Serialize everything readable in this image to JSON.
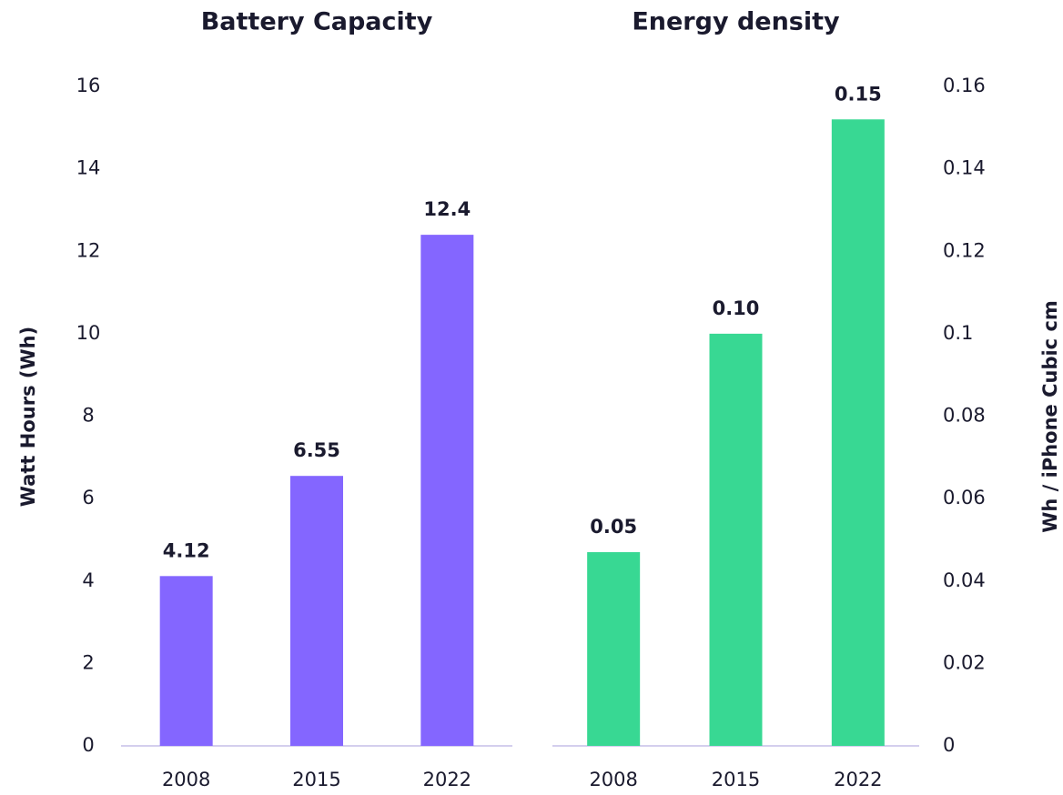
{
  "chart_data": [
    {
      "type": "bar",
      "title": "Battery Capacity",
      "y_label": "Watt Hours (Wh)",
      "categories": [
        "2008",
        "2015",
        "2022"
      ],
      "values": [
        4.12,
        6.55,
        12.4
      ],
      "color": "#8466ff",
      "ylim": [
        0,
        16
      ],
      "yticks": [
        0,
        2,
        4,
        6,
        8,
        10,
        12,
        14,
        16
      ]
    },
    {
      "type": "bar",
      "title": "Energy density",
      "y_label": "Wh / iPhone Cubic cm",
      "categories": [
        "2008",
        "2015",
        "2022"
      ],
      "values": [
        0.047,
        0.1,
        0.152
      ],
      "value_labels": [
        "0.05",
        "0.10",
        "0.15"
      ],
      "color": "#38d893",
      "axis": "y2",
      "y2lim": [
        0,
        0.16
      ],
      "y2ticks": [
        0,
        0.02,
        0.04,
        0.06,
        0.08,
        0.1,
        0.12,
        0.14,
        0.16
      ]
    }
  ]
}
